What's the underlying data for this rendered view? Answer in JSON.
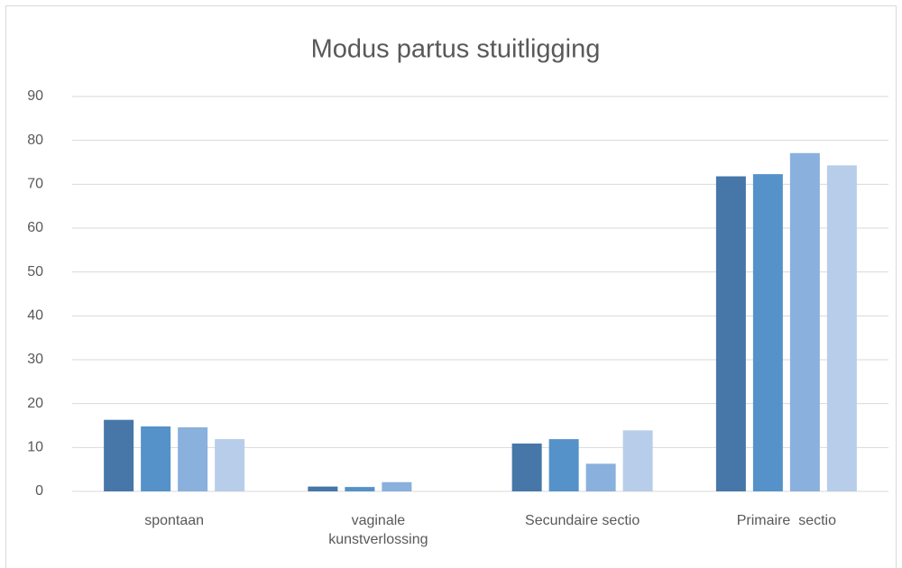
{
  "chart_data": {
    "type": "bar",
    "title": "Modus partus stuitligging",
    "categories": [
      "spontaan",
      "vaginale kunstverlossing",
      "Secundaire sectio",
      "Primaire  sectio"
    ],
    "series": [
      {
        "color": "#4677a8",
        "values": [
          16.3,
          1.1,
          10.9,
          71.8
        ]
      },
      {
        "color": "#5592c9",
        "values": [
          14.8,
          1.0,
          11.9,
          72.3
        ]
      },
      {
        "color": "#8ab0dd",
        "values": [
          14.6,
          2.1,
          6.3,
          77.1
        ]
      },
      {
        "color": "#b7cde9",
        "values": [
          11.9,
          null,
          13.9,
          74.3
        ]
      }
    ],
    "ylim": [
      0,
      90
    ],
    "yticks": [
      0,
      10,
      20,
      30,
      40,
      50,
      60,
      70,
      80,
      90
    ],
    "grid": true
  }
}
